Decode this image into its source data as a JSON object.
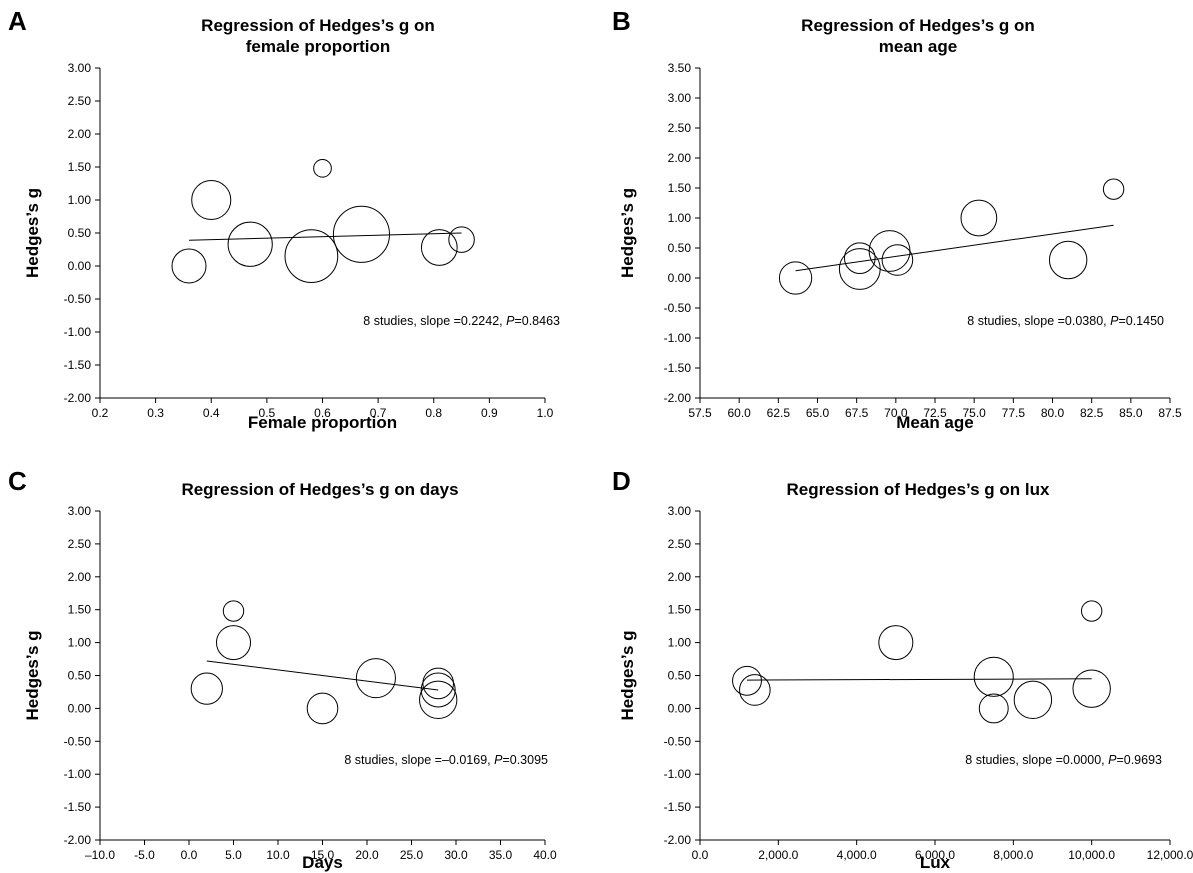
{
  "chart_data": [
    {
      "type": "scatter",
      "panel": "A",
      "title": [
        "Regression of Hedges’s g on",
        "female proportion"
      ],
      "xlabel": "Female proportion",
      "ylabel": "Hedges’s g",
      "xlim": [
        0.2,
        1.0
      ],
      "ylim": [
        -2.0,
        3.0
      ],
      "xticks": [
        "0.2",
        "0.3",
        "0.4",
        "0.5",
        "0.6",
        "0.7",
        "0.8",
        "0.9",
        "1.0"
      ],
      "yticks": [
        "3.00",
        "2.50",
        "2.00",
        "1.50",
        "1.00",
        "0.50",
        "0.00",
        "-0.50",
        "-1.00",
        "-1.50",
        "-2.00"
      ],
      "points": [
        {
          "x": 0.36,
          "y": 0.0,
          "w": 1.0
        },
        {
          "x": 0.4,
          "y": 1.0,
          "w": 1.15
        },
        {
          "x": 0.47,
          "y": 0.33,
          "w": 1.3
        },
        {
          "x": 0.58,
          "y": 0.15,
          "w": 1.55
        },
        {
          "x": 0.6,
          "y": 1.48,
          "w": 0.52
        },
        {
          "x": 0.67,
          "y": 0.48,
          "w": 1.65
        },
        {
          "x": 0.81,
          "y": 0.28,
          "w": 1.05
        },
        {
          "x": 0.85,
          "y": 0.4,
          "w": 0.75
        }
      ],
      "regression": {
        "x": [
          0.36,
          0.85
        ],
        "y": [
          0.39,
          0.5
        ]
      },
      "annotation": {
        "prefix": "8 studies, slope =0.2242, ",
        "p_label": "P",
        "p_value": "=0.8463"
      }
    },
    {
      "type": "scatter",
      "panel": "B",
      "title": [
        "Regression of Hedges’s g on",
        "mean age"
      ],
      "xlabel": "Mean age",
      "ylabel": "Hedges’s g",
      "xlim": [
        57.5,
        87.5
      ],
      "ylim": [
        -2.0,
        3.5
      ],
      "xticks": [
        "57.5",
        "60.0",
        "62.5",
        "65.0",
        "67.5",
        "70.0",
        "72.5",
        "75.0",
        "77.5",
        "80.0",
        "82.5",
        "85.0",
        "87.5"
      ],
      "yticks": [
        "3.50",
        "3.00",
        "2.50",
        "2.00",
        "1.50",
        "1.00",
        "0.50",
        "0.00",
        "-0.50",
        "-1.00",
        "-1.50",
        "-2.00"
      ],
      "points": [
        {
          "x": 63.6,
          "y": 0.0,
          "w": 0.95
        },
        {
          "x": 67.7,
          "y": 0.33,
          "w": 0.9
        },
        {
          "x": 67.7,
          "y": 0.15,
          "w": 1.2
        },
        {
          "x": 69.6,
          "y": 0.45,
          "w": 1.2
        },
        {
          "x": 70.1,
          "y": 0.3,
          "w": 0.9
        },
        {
          "x": 75.3,
          "y": 1.0,
          "w": 1.05
        },
        {
          "x": 81.0,
          "y": 0.3,
          "w": 1.1
        },
        {
          "x": 83.9,
          "y": 1.48,
          "w": 0.6
        }
      ],
      "regression": {
        "x": [
          63.6,
          83.9
        ],
        "y": [
          0.12,
          0.88
        ]
      },
      "annotation": {
        "prefix": "8 studies, slope =0.0380, ",
        "p_label": "P",
        "p_value": "=0.1450"
      }
    },
    {
      "type": "scatter",
      "panel": "C",
      "title": [
        "Regression of Hedges’s g on days"
      ],
      "xlabel": "Days",
      "ylabel": "Hedges’s g",
      "xlim": [
        -10.0,
        40.0
      ],
      "ylim": [
        -2.0,
        3.0
      ],
      "xticks": [
        "–10.0",
        "-5.0",
        "0.0",
        "5.0",
        "10.0",
        "15.0",
        "20.0",
        "25.0",
        "30.0",
        "35.0",
        "40.0"
      ],
      "yticks": [
        "3.00",
        "2.50",
        "2.00",
        "1.50",
        "1.00",
        "0.50",
        "0.00",
        "-0.50",
        "-1.00",
        "-1.50",
        "-2.00"
      ],
      "points": [
        {
          "x": 2.0,
          "y": 0.3,
          "w": 0.92
        },
        {
          "x": 5.0,
          "y": 1.48,
          "w": 0.6
        },
        {
          "x": 5.0,
          "y": 1.0,
          "w": 1.0
        },
        {
          "x": 15.0,
          "y": 0.0,
          "w": 0.9
        },
        {
          "x": 21.0,
          "y": 0.46,
          "w": 1.15
        },
        {
          "x": 28.0,
          "y": 0.38,
          "w": 0.9
        },
        {
          "x": 28.0,
          "y": 0.28,
          "w": 1.0
        },
        {
          "x": 28.0,
          "y": 0.13,
          "w": 1.1
        }
      ],
      "regression": {
        "x": [
          2.0,
          28.0
        ],
        "y": [
          0.72,
          0.28
        ]
      },
      "annotation": {
        "prefix": "8 studies, slope =–0.0169, ",
        "p_label": "P",
        "p_value": "=0.3095"
      }
    },
    {
      "type": "scatter",
      "panel": "D",
      "title": [
        "Regression of Hedges’s g on lux"
      ],
      "xlabel": "Lux",
      "ylabel": "Hedges’s g",
      "xlim": [
        0,
        12000
      ],
      "ylim": [
        -2.0,
        3.0
      ],
      "xticks": [
        "0.0",
        "2,000.0",
        "4,000.0",
        "6,000.0",
        "8,000.0",
        "10,000.0",
        "12,000.0"
      ],
      "yticks": [
        "3.00",
        "2.50",
        "2.00",
        "1.50",
        "1.00",
        "0.50",
        "0.00",
        "-0.50",
        "-1.00",
        "-1.50",
        "-2.00"
      ],
      "points": [
        {
          "x": 1200,
          "y": 0.42,
          "w": 0.85
        },
        {
          "x": 1400,
          "y": 0.28,
          "w": 0.9
        },
        {
          "x": 5000,
          "y": 1.0,
          "w": 1.0
        },
        {
          "x": 7500,
          "y": 0.48,
          "w": 1.15
        },
        {
          "x": 7500,
          "y": 0.0,
          "w": 0.85
        },
        {
          "x": 8500,
          "y": 0.13,
          "w": 1.1
        },
        {
          "x": 10000,
          "y": 1.48,
          "w": 0.6
        },
        {
          "x": 10000,
          "y": 0.3,
          "w": 1.1
        }
      ],
      "regression": {
        "x": [
          1200,
          10000
        ],
        "y": [
          0.43,
          0.45
        ]
      },
      "annotation": {
        "prefix": "8 studies, slope =0.0000, ",
        "p_label": "P",
        "p_value": "=0.9693"
      }
    }
  ]
}
